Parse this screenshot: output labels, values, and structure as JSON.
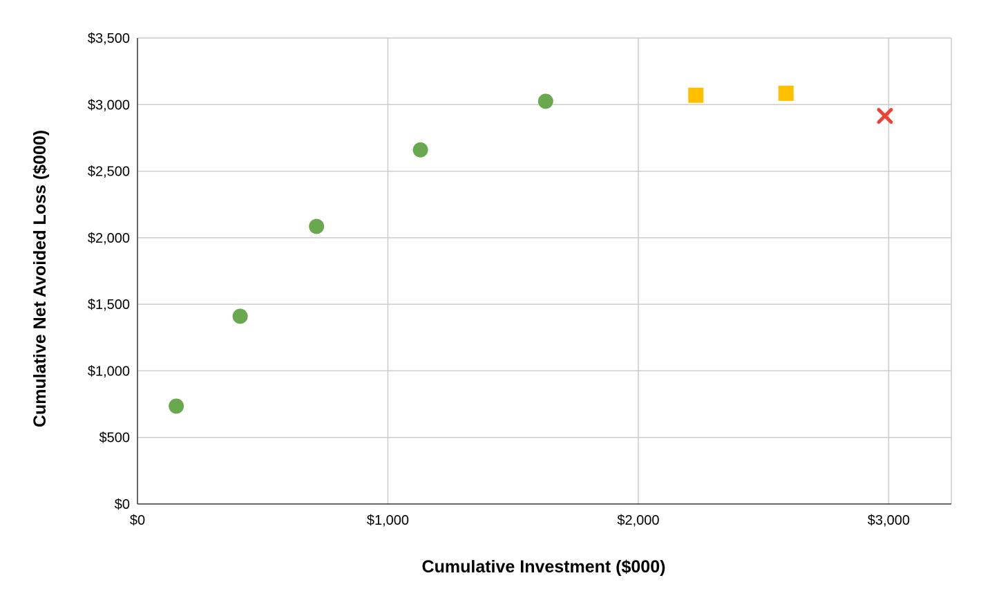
{
  "chart_data": {
    "type": "scatter",
    "title": "",
    "xlabel": "Cumulative Investment ($000)",
    "ylabel": "Cumulative Net Avoided Loss ($000)",
    "xlim": [
      0,
      3250
    ],
    "ylim": [
      0,
      3500
    ],
    "x_ticks": [
      0,
      1000,
      2000,
      3000
    ],
    "x_tick_labels": [
      "$0",
      "$1,000",
      "$2,000",
      "$3,000"
    ],
    "y_ticks": [
      0,
      500,
      1000,
      1500,
      2000,
      2500,
      3000,
      3500
    ],
    "y_tick_labels": [
      "$0",
      "$500",
      "$1,000",
      "$1,500",
      "$2,000",
      "$2,500",
      "$3,000",
      "$3,500"
    ],
    "grid": true,
    "legend": "none",
    "series": [
      {
        "marker": "circle",
        "color": "#6aa84f",
        "points": [
          {
            "x": 155,
            "y": 735
          },
          {
            "x": 410,
            "y": 1410
          },
          {
            "x": 715,
            "y": 2085
          },
          {
            "x": 1130,
            "y": 2660
          },
          {
            "x": 1630,
            "y": 3025
          }
        ]
      },
      {
        "marker": "square",
        "color": "#ffc000",
        "points": [
          {
            "x": 2230,
            "y": 3070
          },
          {
            "x": 2590,
            "y": 3085
          }
        ]
      },
      {
        "marker": "x",
        "color": "#ea4335",
        "points": [
          {
            "x": 2985,
            "y": 2915
          }
        ]
      }
    ]
  }
}
